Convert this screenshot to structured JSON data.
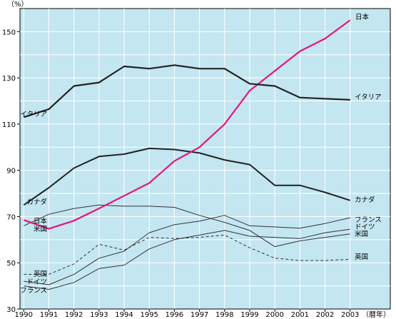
{
  "chart_data": {
    "type": "line",
    "y_unit": "（%）",
    "x_unit": "（暦年）",
    "x": [
      1990,
      1991,
      1992,
      1993,
      1994,
      1995,
      1996,
      1997,
      1998,
      1999,
      2000,
      2001,
      2002,
      2003
    ],
    "xlim": [
      1989.85,
      2004.6
    ],
    "ylim": [
      30,
      160
    ],
    "yticks": [
      50,
      70,
      90,
      110,
      130,
      150
    ],
    "grid": true,
    "plot_background": "#c3e6f1",
    "series": [
      {
        "name": "日本",
        "color": "#e5157d",
        "width": 2.2,
        "dash": "",
        "values": [
          68.5,
          64.7,
          68.2,
          73.5,
          79.0,
          84.5,
          94.0,
          100.0,
          110.0,
          124.5,
          133.0,
          141.5,
          147.0,
          155.0
        ]
      },
      {
        "name": "イタリア",
        "color": "#222222",
        "width": 2.2,
        "dash": "",
        "values": [
          113.0,
          116.5,
          126.5,
          128.0,
          135.0,
          134.0,
          135.5,
          134.0,
          134.0,
          127.5,
          126.5,
          121.5,
          121.0,
          120.5
        ]
      },
      {
        "name": "カナダ",
        "color": "#222222",
        "width": 2.0,
        "dash": "",
        "values": [
          75.0,
          82.5,
          91.0,
          96.0,
          97.0,
          99.5,
          99.0,
          97.5,
          94.5,
          92.5,
          83.5,
          83.5,
          80.5,
          77.0
        ]
      },
      {
        "name": "フランス",
        "color": "#333333",
        "width": 1.0,
        "dash": "",
        "values": [
          40.0,
          38.5,
          41.5,
          47.5,
          49.0,
          56.0,
          60.0,
          62.0,
          64.0,
          61.5,
          61.0,
          60.5,
          63.0,
          64.5
        ]
      },
      {
        "name": "ドイツ",
        "color": "#333333",
        "width": 1.0,
        "dash": "",
        "values": [
          42.0,
          40.5,
          45.0,
          52.0,
          55.0,
          63.0,
          66.5,
          68.0,
          70.5,
          66.0,
          65.5,
          65.0,
          67.0,
          69.5
        ]
      },
      {
        "name": "米国",
        "color": "#333333",
        "width": 1.0,
        "dash": "",
        "values": [
          66.0,
          71.0,
          73.5,
          75.0,
          74.5,
          74.5,
          74.0,
          70.5,
          67.5,
          64.0,
          57.0,
          59.5,
          61.0,
          62.5
        ]
      },
      {
        "name": "英国",
        "color": "#333333",
        "width": 1.0,
        "dash": "4,3",
        "values": [
          45.0,
          45.0,
          49.5,
          58.0,
          55.5,
          61.0,
          60.5,
          61.0,
          62.0,
          56.5,
          52.0,
          51.0,
          51.0,
          51.5
        ]
      }
    ],
    "left_labels": [
      {
        "text": "イタリア",
        "series": "イタリア"
      },
      {
        "text": "カナダ",
        "series": "カナダ"
      },
      {
        "text": "日本",
        "series": "日本"
      },
      {
        "text": "米国",
        "series": "米国"
      },
      {
        "text": "英国",
        "series": "英国"
      },
      {
        "text": "ドイツ",
        "series": "ドイツ"
      },
      {
        "text": "フランス",
        "series": "フランス"
      }
    ],
    "right_labels": [
      {
        "text": "日本",
        "series": "日本"
      },
      {
        "text": "イタリア",
        "series": "イタリア"
      },
      {
        "text": "カナダ",
        "series": "カナダ"
      },
      {
        "text": "フランス",
        "series": "フランス"
      },
      {
        "text": "ドイツ",
        "series": "ドイツ"
      },
      {
        "text": "米国",
        "series": "米国"
      },
      {
        "text": "英国",
        "series": "英国"
      }
    ]
  }
}
